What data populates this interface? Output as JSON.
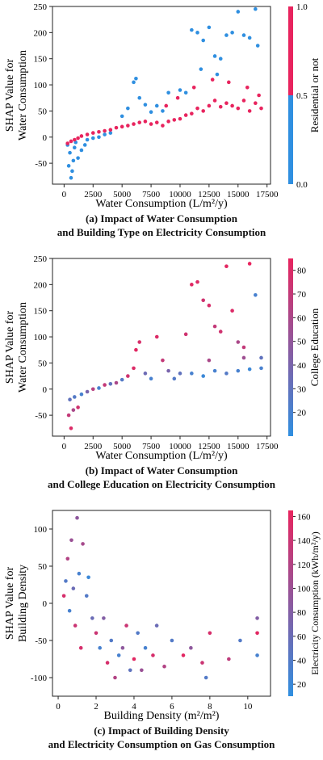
{
  "chart_data": [
    {
      "type": "scatter",
      "panel_label": "(a)",
      "caption_line1": "Impact of Water Consumption",
      "caption_line2": "and Building Type on Electricity Consumption",
      "xlabel": "Water Consumption (L/m²/y)",
      "ylabel_line1": "SHAP Value for",
      "ylabel_line2": "Water Consumption",
      "xlim": [
        -1000,
        17800
      ],
      "ylim": [
        -90,
        250
      ],
      "xticks": [
        0,
        2500,
        5000,
        7500,
        10000,
        12500,
        15000,
        17500
      ],
      "yticks": [
        -50,
        0,
        50,
        100,
        150,
        200,
        250
      ],
      "colorbar": {
        "label": "Residential or not",
        "kind": "binary",
        "ticks": [
          0.0,
          0.5,
          1.0
        ],
        "tick_labels": [
          "0.0",
          "0.5",
          "1.0"
        ],
        "colors": [
          "#2f8fe0",
          "#e8245e"
        ]
      },
      "series": [
        {
          "name": "0.0",
          "color": "#2f8fe0",
          "points": [
            [
              400,
              -55
            ],
            [
              600,
              -78
            ],
            [
              800,
              -45
            ],
            [
              500,
              -30
            ],
            [
              900,
              -20
            ],
            [
              1200,
              -40
            ],
            [
              300,
              -15
            ],
            [
              700,
              -65
            ],
            [
              1000,
              -10
            ],
            [
              1500,
              -25
            ],
            [
              2000,
              -5
            ],
            [
              1800,
              -15
            ],
            [
              2500,
              -2
            ],
            [
              3000,
              0
            ],
            [
              3500,
              5
            ],
            [
              4000,
              8
            ],
            [
              5000,
              40
            ],
            [
              5500,
              55
            ],
            [
              6000,
              105
            ],
            [
              6200,
              112
            ],
            [
              6500,
              75
            ],
            [
              7000,
              62
            ],
            [
              7500,
              48
            ],
            [
              8000,
              60
            ],
            [
              8500,
              50
            ],
            [
              9000,
              85
            ],
            [
              10000,
              90
            ],
            [
              10500,
              85
            ],
            [
              11000,
              205
            ],
            [
              11500,
              200
            ],
            [
              12000,
              185
            ],
            [
              12500,
              210
            ],
            [
              13000,
              155
            ],
            [
              13500,
              150
            ],
            [
              14000,
              195
            ],
            [
              14500,
              200
            ],
            [
              15000,
              240
            ],
            [
              15500,
              195
            ],
            [
              16000,
              190
            ],
            [
              16500,
              245
            ],
            [
              16700,
              175
            ],
            [
              11800,
              130
            ],
            [
              13200,
              120
            ]
          ]
        },
        {
          "name": "1.0",
          "color": "#e8245e",
          "points": [
            [
              300,
              -12
            ],
            [
              600,
              -8
            ],
            [
              900,
              -5
            ],
            [
              1200,
              -2
            ],
            [
              1500,
              2
            ],
            [
              2000,
              5
            ],
            [
              2500,
              8
            ],
            [
              3000,
              10
            ],
            [
              3500,
              12
            ],
            [
              4000,
              14
            ],
            [
              4500,
              18
            ],
            [
              5000,
              20
            ],
            [
              5500,
              22
            ],
            [
              6000,
              25
            ],
            [
              6500,
              28
            ],
            [
              7000,
              30
            ],
            [
              7500,
              25
            ],
            [
              8000,
              28
            ],
            [
              8500,
              22
            ],
            [
              9000,
              30
            ],
            [
              9500,
              33
            ],
            [
              10000,
              35
            ],
            [
              10500,
              42
            ],
            [
              11000,
              45
            ],
            [
              11500,
              55
            ],
            [
              12000,
              50
            ],
            [
              12500,
              60
            ],
            [
              13000,
              70
            ],
            [
              13500,
              58
            ],
            [
              14000,
              65
            ],
            [
              14500,
              60
            ],
            [
              15000,
              55
            ],
            [
              15500,
              70
            ],
            [
              16000,
              50
            ],
            [
              16500,
              65
            ],
            [
              17000,
              55
            ],
            [
              11200,
              95
            ],
            [
              12800,
              110
            ],
            [
              14200,
              105
            ],
            [
              15800,
              95
            ],
            [
              16800,
              80
            ],
            [
              9800,
              75
            ],
            [
              8800,
              60
            ]
          ]
        }
      ]
    },
    {
      "type": "scatter",
      "panel_label": "(b)",
      "caption_line1": "Impact of Water Consumption",
      "caption_line2": "and College Education on Electricity Consumption",
      "xlabel": "Water Consumption (L/m²/y)",
      "ylabel_line1": "SHAP Value for",
      "ylabel_line2": "Water Consumption",
      "xlim": [
        -1000,
        17800
      ],
      "ylim": [
        -90,
        250
      ],
      "xticks": [
        0,
        2500,
        5000,
        7500,
        10000,
        12500,
        15000,
        17500
      ],
      "yticks": [
        -50,
        0,
        50,
        100,
        150,
        200,
        250
      ],
      "colorbar": {
        "label": "College Education",
        "kind": "continuous",
        "range": [
          10,
          85
        ],
        "ticks": [
          20,
          30,
          40,
          50,
          60,
          70,
          80
        ],
        "tick_labels": [
          "20",
          "30",
          "40",
          "50",
          "60",
          "70",
          "80"
        ],
        "colors": [
          "#2f8fe0",
          "#e8245e"
        ]
      },
      "points": [
        [
          400,
          -50,
          70
        ],
        [
          600,
          -75,
          80
        ],
        [
          800,
          -40,
          60
        ],
        [
          500,
          -20,
          30
        ],
        [
          900,
          -15,
          25
        ],
        [
          1200,
          -35,
          75
        ],
        [
          1500,
          -10,
          20
        ],
        [
          2000,
          -5,
          40
        ],
        [
          2500,
          0,
          65
        ],
        [
          3000,
          2,
          20
        ],
        [
          3500,
          8,
          70
        ],
        [
          4000,
          10,
          30
        ],
        [
          4500,
          12,
          60
        ],
        [
          5000,
          18,
          25
        ],
        [
          5500,
          25,
          75
        ],
        [
          6000,
          40,
          80
        ],
        [
          6200,
          75,
          82
        ],
        [
          6500,
          90,
          78
        ],
        [
          7000,
          30,
          35
        ],
        [
          7500,
          20,
          20
        ],
        [
          8000,
          100,
          80
        ],
        [
          8500,
          55,
          70
        ],
        [
          9000,
          35,
          40
        ],
        [
          9500,
          20,
          25
        ],
        [
          10000,
          30,
          30
        ],
        [
          10500,
          105,
          75
        ],
        [
          11000,
          200,
          82
        ],
        [
          11500,
          205,
          80
        ],
        [
          12000,
          170,
          75
        ],
        [
          12500,
          160,
          78
        ],
        [
          13000,
          120,
          70
        ],
        [
          13500,
          110,
          75
        ],
        [
          14000,
          235,
          83
        ],
        [
          14500,
          150,
          80
        ],
        [
          15000,
          90,
          60
        ],
        [
          15500,
          80,
          70
        ],
        [
          16000,
          240,
          85
        ],
        [
          16500,
          180,
          20
        ],
        [
          17000,
          60,
          30
        ],
        [
          11000,
          30,
          20
        ],
        [
          12000,
          25,
          15
        ],
        [
          13000,
          35,
          20
        ],
        [
          14000,
          30,
          25
        ],
        [
          15000,
          35,
          20
        ],
        [
          16000,
          38,
          15
        ],
        [
          17000,
          40,
          20
        ],
        [
          12500,
          55,
          60
        ],
        [
          15500,
          60,
          55
        ]
      ]
    },
    {
      "type": "scatter",
      "panel_label": "(c)",
      "caption_line1": "Impact of Building Density",
      "caption_line2": "and Electricity Consumption on Gas Consumption",
      "xlabel": "Building Density (m²/m²)",
      "ylabel_line1": "SHAP Value for",
      "ylabel_line2": "Building Density",
      "xlim": [
        -0.3,
        11.2
      ],
      "ylim": [
        -125,
        125
      ],
      "xticks": [
        0,
        2,
        4,
        6,
        8,
        10
      ],
      "yticks": [
        -100,
        -50,
        0,
        50,
        100
      ],
      "colorbar": {
        "label": "Electricity Consumption (kWh/m²/y)",
        "kind": "continuous",
        "range": [
          10,
          165
        ],
        "ticks": [
          20,
          40,
          60,
          80,
          100,
          120,
          140,
          160
        ],
        "tick_labels": [
          "20",
          "40",
          "60",
          "80",
          "100",
          "120",
          "140",
          "160"
        ],
        "colors": [
          "#2f8fe0",
          "#e8245e"
        ]
      },
      "points": [
        [
          0.3,
          10,
          150
        ],
        [
          0.4,
          30,
          40
        ],
        [
          0.5,
          60,
          120
        ],
        [
          0.6,
          -10,
          30
        ],
        [
          0.7,
          85,
          100
        ],
        [
          0.8,
          20,
          60
        ],
        [
          0.9,
          -30,
          140
        ],
        [
          1.0,
          115,
          90
        ],
        [
          1.1,
          40,
          30
        ],
        [
          1.2,
          -60,
          150
        ],
        [
          1.3,
          80,
          110
        ],
        [
          1.5,
          10,
          40
        ],
        [
          1.6,
          35,
          20
        ],
        [
          1.8,
          -20,
          60
        ],
        [
          2.0,
          -40,
          140
        ],
        [
          2.2,
          -60,
          30
        ],
        [
          2.4,
          -20,
          80
        ],
        [
          2.6,
          -80,
          150
        ],
        [
          2.8,
          -50,
          40
        ],
        [
          3.0,
          -100,
          120
        ],
        [
          3.2,
          -70,
          30
        ],
        [
          3.4,
          -60,
          90
        ],
        [
          3.6,
          -30,
          140
        ],
        [
          3.8,
          -90,
          50
        ],
        [
          4.0,
          -75,
          160
        ],
        [
          4.2,
          -40,
          40
        ],
        [
          4.4,
          -90,
          100
        ],
        [
          4.6,
          -60,
          30
        ],
        [
          5.0,
          -70,
          150
        ],
        [
          5.2,
          -30,
          60
        ],
        [
          5.6,
          -85,
          120
        ],
        [
          6.0,
          -50,
          40
        ],
        [
          6.6,
          -70,
          160
        ],
        [
          7.0,
          -60,
          90
        ],
        [
          7.6,
          -80,
          140
        ],
        [
          7.8,
          -100,
          40
        ],
        [
          8.0,
          -40,
          150
        ],
        [
          9.0,
          -75,
          130
        ],
        [
          9.6,
          -50,
          40
        ],
        [
          10.5,
          -40,
          160
        ],
        [
          10.5,
          -70,
          30
        ],
        [
          10.5,
          -20,
          80
        ]
      ]
    }
  ]
}
